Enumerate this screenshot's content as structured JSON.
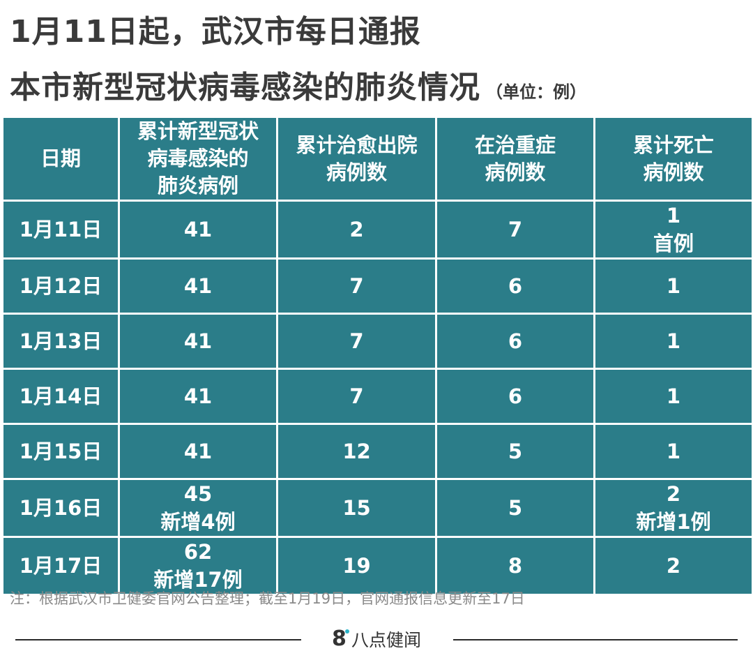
{
  "title": {
    "line1": "1月11日起，武汉市每日通报",
    "line2": "本市新型冠状病毒感染的肺炎情况",
    "unit": "（单位：例）"
  },
  "table": {
    "headers": [
      [
        "日期"
      ],
      [
        "累计新型冠状",
        "病毒感染的",
        "肺炎病例"
      ],
      [
        "累计治愈出院",
        "病例数"
      ],
      [
        "在治重症",
        "病例数"
      ],
      [
        "累计死亡",
        "病例数"
      ]
    ],
    "rows": [
      [
        [
          "1月11日"
        ],
        [
          "41"
        ],
        [
          "2"
        ],
        [
          "7"
        ],
        [
          "1",
          "首例"
        ]
      ],
      [
        [
          "1月12日"
        ],
        [
          "41"
        ],
        [
          "7"
        ],
        [
          "6"
        ],
        [
          "1"
        ]
      ],
      [
        [
          "1月13日"
        ],
        [
          "41"
        ],
        [
          "7"
        ],
        [
          "6"
        ],
        [
          "1"
        ]
      ],
      [
        [
          "1月14日"
        ],
        [
          "41"
        ],
        [
          "7"
        ],
        [
          "6"
        ],
        [
          "1"
        ]
      ],
      [
        [
          "1月15日"
        ],
        [
          "41"
        ],
        [
          "12"
        ],
        [
          "5"
        ],
        [
          "1"
        ]
      ],
      [
        [
          "1月16日"
        ],
        [
          "45",
          "新增4例"
        ],
        [
          "15"
        ],
        [
          "5"
        ],
        [
          "2",
          "新增1例"
        ]
      ],
      [
        [
          "1月17日"
        ],
        [
          "62",
          "新增17例"
        ],
        [
          "19"
        ],
        [
          "8"
        ],
        [
          "2"
        ]
      ]
    ]
  },
  "colors": {
    "table_bg": "#2b7d89",
    "cell_border": "#ffffff",
    "title_text": "#3a3a3a",
    "note_text": "#8a8a8a",
    "brand_accent": "#2bb3c8"
  },
  "note": "注：根据武汉市卫健委官网公告整理；截至1月19日，官网通报信息更新至17日",
  "footer": {
    "brand_mark": "8",
    "brand_name": "八点健闻"
  }
}
